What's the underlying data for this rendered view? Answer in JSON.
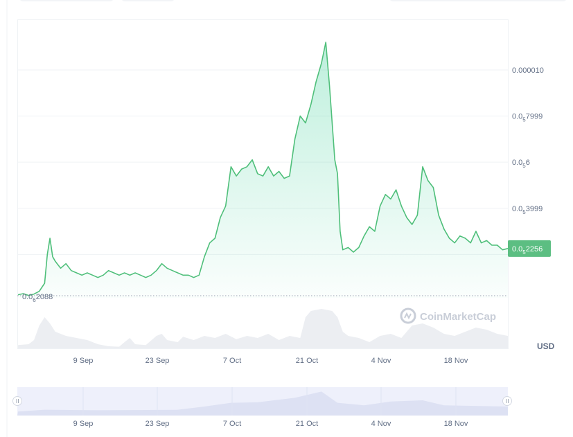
{
  "chart_data": {
    "type": "area",
    "currency_label": "USD",
    "watermark": "CoinMarketCap",
    "colors": {
      "line": "#4fbf7a",
      "fill": "#16c784",
      "price_tag": "#5cbe82",
      "volume": "#eceef2",
      "navigator": "#e8ebf8"
    },
    "y_axis": {
      "ticks": [
        {
          "value": 1e-05,
          "prefix": "0.000010",
          "zeros": "",
          "digits": ""
        },
        {
          "value": 7.999e-06,
          "prefix": "0.0",
          "zeros": "5",
          "digits": "7999"
        },
        {
          "value": 6e-06,
          "prefix": "0.0",
          "zeros": "5",
          "digits": "6"
        },
        {
          "value": 3.999e-06,
          "prefix": "0.0",
          "zeros": "5",
          "digits": "3999"
        }
      ]
    },
    "x_axis": {
      "ticks": [
        "9 Sep",
        "23 Sep",
        "7 Oct",
        "21 Oct",
        "4 Nov",
        "18 Nov"
      ]
    },
    "navigator_ticks": [
      "9 Sep",
      "23 Sep",
      "7 Oct",
      "21 Oct",
      "4 Nov",
      "18 Nov"
    ],
    "current_price": {
      "value": 2.256e-06,
      "prefix": "0.0",
      "zeros": "5",
      "digits": "2256"
    },
    "low_marker": {
      "value": 2.088e-07,
      "prefix": "0.0",
      "zeros": "6",
      "digits": "2088"
    },
    "x_range_days": [
      0,
      92
    ],
    "y_range": [
      2.088e-07,
      1.18e-05
    ],
    "series": [
      {
        "values": [
          [
            0,
            2.5e-07
          ],
          [
            1,
            3e-07
          ],
          [
            2,
            2.2e-07
          ],
          [
            3,
            2.8e-07
          ],
          [
            4,
            4e-07
          ],
          [
            5,
            7.5e-07
          ],
          [
            5.5,
            2e-06
          ],
          [
            6,
            2.7e-06
          ],
          [
            6.5,
            1.9e-06
          ],
          [
            7,
            1.7e-06
          ],
          [
            8,
            1.4e-06
          ],
          [
            9,
            1.6e-06
          ],
          [
            10,
            1.3e-06
          ],
          [
            11,
            1.2e-06
          ],
          [
            12,
            1.1e-06
          ],
          [
            13,
            1.2e-06
          ],
          [
            14,
            1.1e-06
          ],
          [
            15,
            1e-06
          ],
          [
            16,
            1.1e-06
          ],
          [
            17,
            1.3e-06
          ],
          [
            18,
            1.2e-06
          ],
          [
            19,
            1.1e-06
          ],
          [
            20,
            1.2e-06
          ],
          [
            21,
            1.1e-06
          ],
          [
            22,
            1.2e-06
          ],
          [
            23,
            1.1e-06
          ],
          [
            24,
            1e-06
          ],
          [
            25,
            1.1e-06
          ],
          [
            26,
            1.3e-06
          ],
          [
            27,
            1.6e-06
          ],
          [
            28,
            1.4e-06
          ],
          [
            29,
            1.3e-06
          ],
          [
            30,
            1.2e-06
          ],
          [
            31,
            1.1e-06
          ],
          [
            32,
            1.1e-06
          ],
          [
            33,
            1e-06
          ],
          [
            34,
            1.1e-06
          ],
          [
            35,
            1.9e-06
          ],
          [
            36,
            2.5e-06
          ],
          [
            37,
            2.7e-06
          ],
          [
            38,
            3.6e-06
          ],
          [
            39,
            4.1e-06
          ],
          [
            40,
            5.8e-06
          ],
          [
            41,
            5.4e-06
          ],
          [
            42,
            5.7e-06
          ],
          [
            43,
            5.8e-06
          ],
          [
            44,
            6.1e-06
          ],
          [
            45,
            5.5e-06
          ],
          [
            46,
            5.4e-06
          ],
          [
            47,
            5.8e-06
          ],
          [
            48,
            5.4e-06
          ],
          [
            49,
            5.6e-06
          ],
          [
            50,
            5.3e-06
          ],
          [
            51,
            5.4e-06
          ],
          [
            52,
            7e-06
          ],
          [
            53,
            8e-06
          ],
          [
            54,
            7.7e-06
          ],
          [
            55,
            8.5e-06
          ],
          [
            56,
            9.5e-06
          ],
          [
            57,
            1.03e-05
          ],
          [
            57.8,
            1.12e-05
          ],
          [
            58.5,
            9.3e-06
          ],
          [
            59.5,
            6.1e-06
          ],
          [
            60,
            5.5e-06
          ],
          [
            60.5,
            3e-06
          ],
          [
            61,
            2.2e-06
          ],
          [
            62,
            2.3e-06
          ],
          [
            63,
            2.1e-06
          ],
          [
            64,
            2.3e-06
          ],
          [
            65,
            2.8e-06
          ],
          [
            66,
            3.2e-06
          ],
          [
            67,
            3e-06
          ],
          [
            68,
            4.1e-06
          ],
          [
            69,
            4.6e-06
          ],
          [
            70,
            4.4e-06
          ],
          [
            71,
            4.8e-06
          ],
          [
            72,
            4.1e-06
          ],
          [
            73,
            3.6e-06
          ],
          [
            74,
            3.3e-06
          ],
          [
            75,
            3.7e-06
          ],
          [
            76,
            5.8e-06
          ],
          [
            77,
            5.2e-06
          ],
          [
            78,
            4.9e-06
          ],
          [
            79,
            3.7e-06
          ],
          [
            80,
            3.1e-06
          ],
          [
            81,
            2.7e-06
          ],
          [
            82,
            2.5e-06
          ],
          [
            83,
            2.8e-06
          ],
          [
            84,
            2.7e-06
          ],
          [
            85,
            2.5e-06
          ],
          [
            86,
            3e-06
          ],
          [
            87,
            2.5e-06
          ],
          [
            88,
            2.6e-06
          ],
          [
            89,
            2.4e-06
          ],
          [
            90,
            2.4e-06
          ],
          [
            91,
            2.2e-06
          ],
          [
            92,
            2.256e-06
          ]
        ]
      }
    ],
    "volume": [
      [
        0,
        0.08
      ],
      [
        2,
        0.1
      ],
      [
        3,
        0.2
      ],
      [
        4,
        0.55
      ],
      [
        5,
        0.75
      ],
      [
        6,
        0.6
      ],
      [
        7,
        0.4
      ],
      [
        9,
        0.3
      ],
      [
        11,
        0.25
      ],
      [
        13,
        0.2
      ],
      [
        15,
        0.1
      ],
      [
        17,
        0.05
      ],
      [
        19,
        0.04
      ],
      [
        20,
        0.15
      ],
      [
        21,
        0.25
      ],
      [
        22,
        0.1
      ],
      [
        24,
        0.08
      ],
      [
        26,
        0.3
      ],
      [
        27,
        0.35
      ],
      [
        28,
        0.2
      ],
      [
        30,
        0.15
      ],
      [
        31,
        0.28
      ],
      [
        33,
        0.2
      ],
      [
        35,
        0.3
      ],
      [
        37,
        0.25
      ],
      [
        39,
        0.35
      ],
      [
        41,
        0.22
      ],
      [
        43,
        0.3
      ],
      [
        45,
        0.25
      ],
      [
        47,
        0.35
      ],
      [
        49,
        0.2
      ],
      [
        51,
        0.3
      ],
      [
        53,
        0.25
      ],
      [
        54,
        0.75
      ],
      [
        55,
        0.9
      ],
      [
        57,
        0.95
      ],
      [
        59,
        0.9
      ],
      [
        60,
        0.75
      ],
      [
        61,
        0.4
      ],
      [
        62,
        0.3
      ],
      [
        64,
        0.25
      ],
      [
        66,
        0.15
      ],
      [
        68,
        0.3
      ],
      [
        70,
        0.35
      ],
      [
        72,
        0.25
      ],
      [
        74,
        0.55
      ],
      [
        76,
        0.6
      ],
      [
        78,
        0.5
      ],
      [
        80,
        0.35
      ],
      [
        82,
        0.3
      ],
      [
        84,
        0.4
      ],
      [
        86,
        0.5
      ],
      [
        88,
        0.45
      ],
      [
        90,
        0.35
      ],
      [
        92,
        0.3
      ]
    ],
    "navigator": [
      [
        0,
        0.05
      ],
      [
        5,
        0.12
      ],
      [
        15,
        0.1
      ],
      [
        30,
        0.12
      ],
      [
        35,
        0.25
      ],
      [
        40,
        0.4
      ],
      [
        45,
        0.42
      ],
      [
        52,
        0.6
      ],
      [
        57,
        0.85
      ],
      [
        60,
        0.4
      ],
      [
        65,
        0.3
      ],
      [
        70,
        0.45
      ],
      [
        76,
        0.5
      ],
      [
        80,
        0.3
      ],
      [
        92,
        0.25
      ]
    ]
  }
}
